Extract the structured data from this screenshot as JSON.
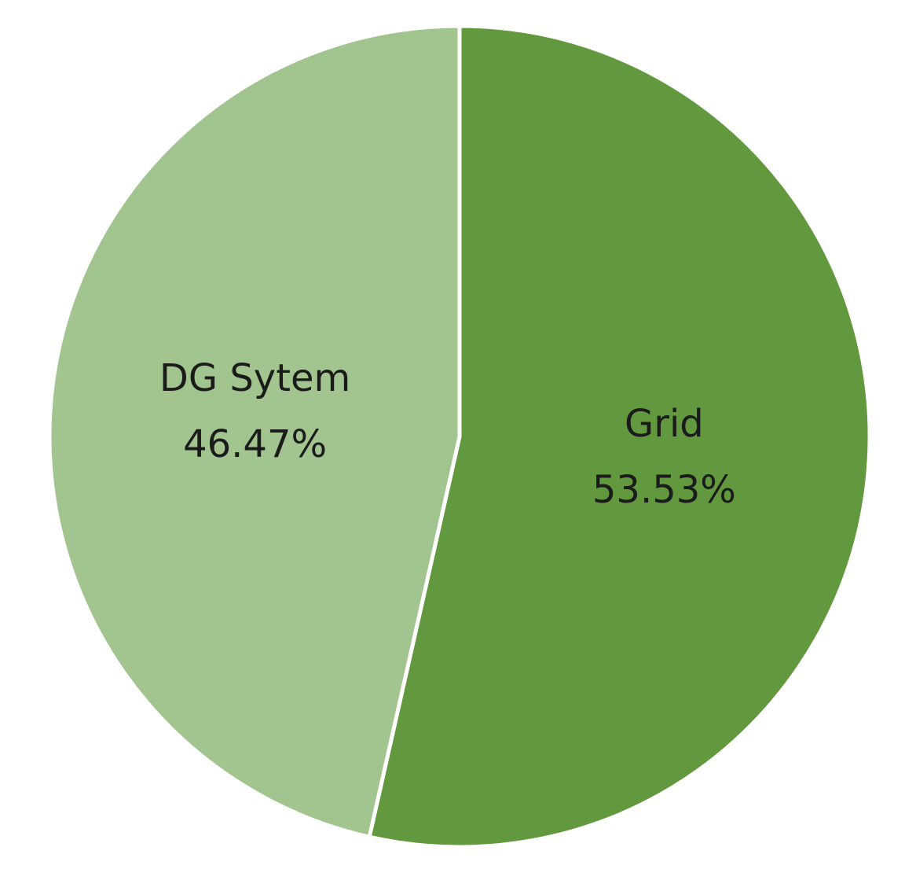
{
  "chart_data": {
    "type": "pie",
    "categories": [
      "Grid",
      "DG Sytem"
    ],
    "values": [
      53.53,
      46.47
    ],
    "value_labels": [
      "53.53%",
      "46.47%"
    ],
    "colors": [
      "#62993e",
      "#a2c48f"
    ]
  }
}
